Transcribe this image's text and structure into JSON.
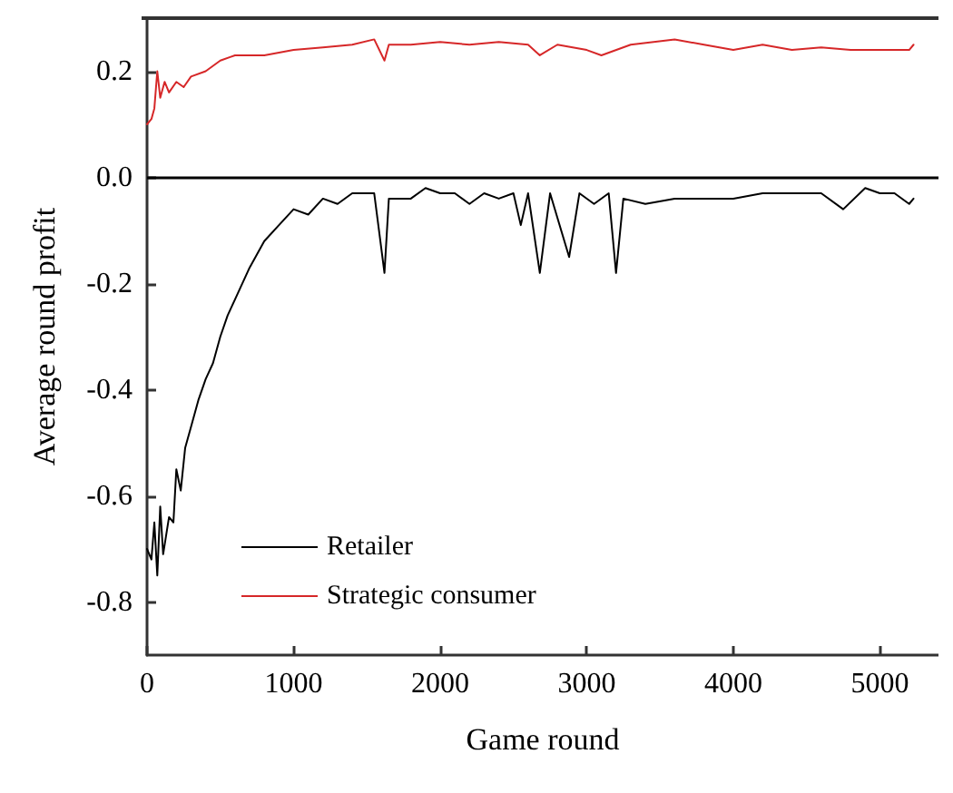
{
  "chart_data": {
    "type": "line",
    "xlabel": "Game round",
    "ylabel": "Average round profit",
    "xlim": [
      0,
      5400
    ],
    "xticks": [
      0,
      1000,
      2000,
      3000,
      4000,
      5000
    ],
    "ylim": [
      -0.9,
      0.3
    ],
    "yticks": [
      {
        "value": -0.8,
        "label": "-0.8"
      },
      {
        "value": -0.6,
        "label": "-0.6"
      },
      {
        "value": -0.4,
        "label": "-0.4"
      },
      {
        "value": -0.2,
        "label": "-0.2"
      },
      {
        "value": 0,
        "label": "0.0"
      },
      {
        "value": 0.2,
        "label": "0.2"
      }
    ],
    "grid": false,
    "legend": "bottom left",
    "marker": "none",
    "line_style": "solid",
    "ref_lines": [
      {
        "axis": "y",
        "value": 0,
        "color": "#000000"
      }
    ],
    "series": [
      {
        "name": "Retailer",
        "color": "#000000",
        "x": [
          0,
          30,
          50,
          70,
          90,
          110,
          150,
          180,
          200,
          230,
          260,
          300,
          350,
          400,
          450,
          500,
          550,
          600,
          700,
          800,
          900,
          1000,
          1100,
          1200,
          1300,
          1400,
          1550,
          1620,
          1650,
          1800,
          1900,
          2000,
          2100,
          2200,
          2300,
          2400,
          2500,
          2550,
          2600,
          2680,
          2750,
          2880,
          2950,
          3050,
          3150,
          3200,
          3250,
          3400,
          3600,
          3800,
          4000,
          4200,
          4400,
          4600,
          4750,
          4900,
          5000,
          5100,
          5200,
          5230
        ],
        "values": [
          -0.7,
          -0.72,
          -0.65,
          -0.75,
          -0.62,
          -0.71,
          -0.64,
          -0.65,
          -0.55,
          -0.59,
          -0.51,
          -0.47,
          -0.42,
          -0.38,
          -0.35,
          -0.3,
          -0.26,
          -0.23,
          -0.17,
          -0.12,
          -0.09,
          -0.06,
          -0.07,
          -0.04,
          -0.05,
          -0.03,
          -0.03,
          -0.18,
          -0.04,
          -0.04,
          -0.02,
          -0.03,
          -0.03,
          -0.05,
          -0.03,
          -0.04,
          -0.03,
          -0.09,
          -0.03,
          -0.18,
          -0.03,
          -0.15,
          -0.03,
          -0.05,
          -0.03,
          -0.18,
          -0.04,
          -0.05,
          -0.04,
          -0.04,
          -0.04,
          -0.03,
          -0.03,
          -0.03,
          -0.06,
          -0.02,
          -0.03,
          -0.03,
          -0.05,
          -0.04
        ]
      },
      {
        "name": "Strategic consumer",
        "color": "#d62728",
        "x": [
          0,
          30,
          50,
          70,
          90,
          120,
          150,
          200,
          250,
          300,
          400,
          500,
          600,
          800,
          1000,
          1200,
          1400,
          1550,
          1620,
          1650,
          1800,
          2000,
          2200,
          2400,
          2600,
          2680,
          2800,
          3000,
          3100,
          3300,
          3600,
          3800,
          4000,
          4200,
          4400,
          4600,
          4800,
          5000,
          5200,
          5230
        ],
        "values": [
          0.1,
          0.11,
          0.13,
          0.2,
          0.15,
          0.18,
          0.16,
          0.18,
          0.17,
          0.19,
          0.2,
          0.22,
          0.23,
          0.23,
          0.24,
          0.245,
          0.25,
          0.26,
          0.22,
          0.25,
          0.25,
          0.255,
          0.25,
          0.255,
          0.25,
          0.23,
          0.25,
          0.24,
          0.23,
          0.25,
          0.26,
          0.25,
          0.24,
          0.25,
          0.24,
          0.245,
          0.24,
          0.24,
          0.24,
          0.25
        ]
      }
    ]
  }
}
